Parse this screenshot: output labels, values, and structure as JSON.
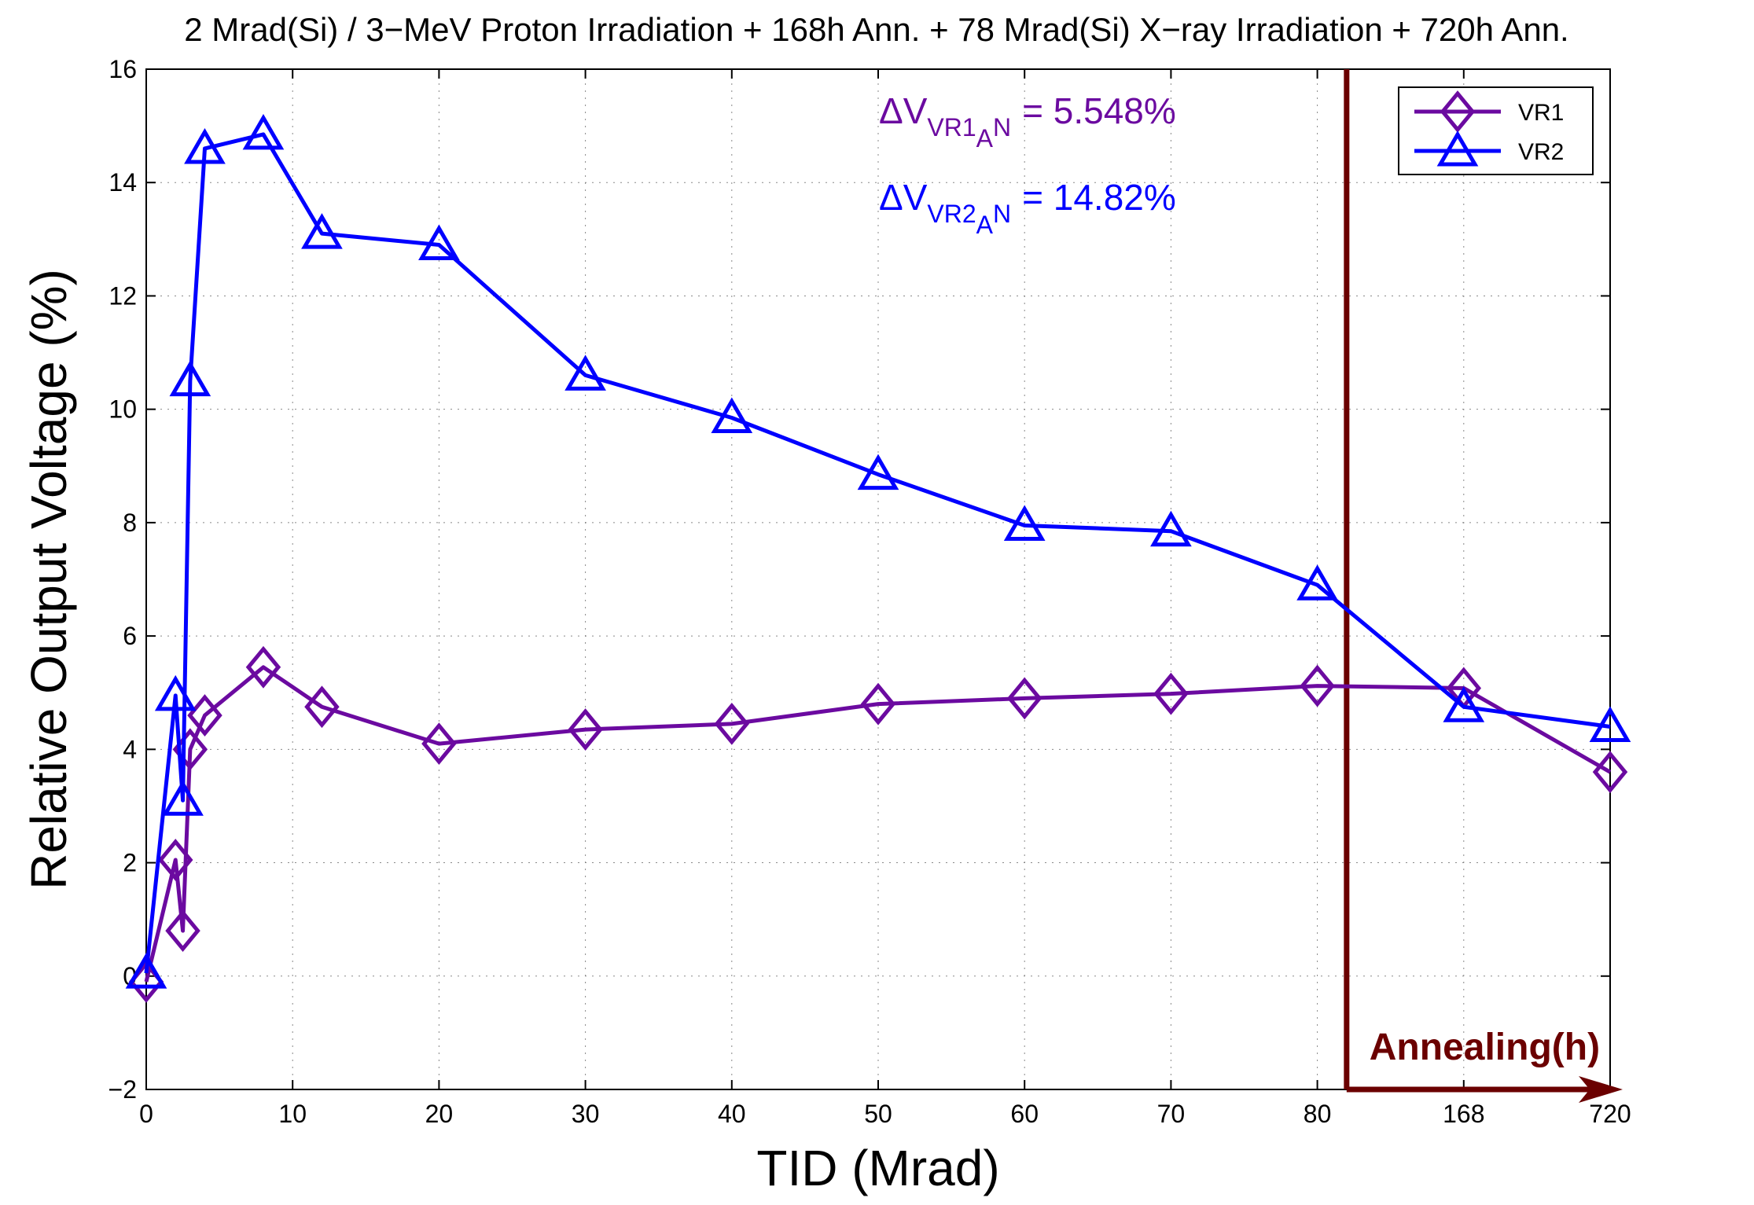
{
  "chart_data": {
    "type": "line",
    "title": "2 Mrad(Si) / 3−MeV Proton Irradiation + 168h Ann. + 78 Mrad(Si) X−ray Irradiation + 720h Ann.",
    "xlabel": "TID (Mrad)",
    "ylabel": "Relative Output Voltage (%)",
    "ylim": [
      -2,
      16
    ],
    "yticks": [
      -2,
      0,
      2,
      4,
      6,
      8,
      10,
      12,
      14,
      16
    ],
    "ytick_labels": [
      "−2",
      "0",
      "2",
      "4",
      "6",
      "8",
      "10",
      "12",
      "14",
      "16"
    ],
    "xlim_index": [
      0,
      10
    ],
    "xticks_index": [
      0,
      1,
      2,
      3,
      4,
      5,
      6,
      7,
      8,
      9,
      10
    ],
    "xtick_labels": [
      "0",
      "10",
      "20",
      "30",
      "40",
      "50",
      "60",
      "70",
      "80",
      "168",
      "720"
    ],
    "grid": true,
    "series": [
      {
        "name": "VR1",
        "color": "#6B0AA0",
        "marker": "diamond",
        "x_index": [
          0,
          0.2,
          0.25,
          0.3,
          0.4,
          0.8,
          1.2,
          2,
          3,
          4,
          5,
          6,
          7,
          8,
          9,
          10
        ],
        "values": [
          -0.1,
          2.05,
          0.8,
          4.0,
          4.6,
          5.45,
          4.75,
          4.1,
          4.35,
          4.45,
          4.8,
          4.9,
          4.98,
          5.12,
          5.08,
          3.6
        ]
      },
      {
        "name": "VR2",
        "color": "#0000FF",
        "marker": "triangle",
        "x_index": [
          0,
          0.2,
          0.25,
          0.3,
          0.4,
          0.8,
          1.2,
          2,
          3,
          4,
          5,
          6,
          7,
          8,
          9,
          10
        ],
        "values": [
          0.05,
          4.95,
          3.1,
          10.5,
          14.6,
          14.85,
          13.1,
          12.9,
          10.6,
          9.85,
          8.85,
          7.95,
          7.85,
          6.9,
          4.75,
          4.4
        ]
      }
    ],
    "annotations": [
      {
        "prefix": "ΔV",
        "sub": "VR1",
        "subsub": "A",
        "suffix": "N",
        "text": "= 5.548%",
        "color": "#6B0AA0"
      },
      {
        "prefix": "ΔV",
        "sub": "VR2",
        "subsub": "A",
        "suffix": "N",
        "text": "= 14.82%",
        "color": "#0000FF"
      }
    ],
    "annealing": {
      "label": "Annealing(h)",
      "color": "#6B0000",
      "start_index": 8.2,
      "end_index": 10
    },
    "legend": {
      "placement": "top-right",
      "entries": [
        "VR1",
        "VR2"
      ]
    }
  }
}
